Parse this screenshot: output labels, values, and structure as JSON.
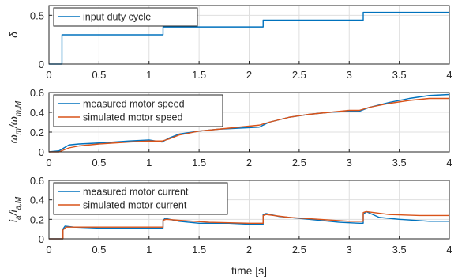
{
  "chart_data": [
    {
      "type": "line",
      "ylabel": "δ",
      "xlabel": "",
      "xlim": [
        0,
        4
      ],
      "ylim": [
        0,
        0.6
      ],
      "xticks": [
        "0",
        "0.5",
        "1",
        "1.5",
        "2",
        "2.5",
        "3",
        "3.5",
        "4"
      ],
      "yticks": [
        "0",
        "0.5"
      ],
      "grid": true,
      "legend_position": "top-left",
      "colors": {
        "blue": "#0072BD"
      },
      "series": [
        {
          "name": "input duty cycle",
          "color": "#0072BD",
          "x": [
            0,
            0.13,
            0.13,
            1.14,
            1.14,
            2.14,
            2.14,
            3.14,
            3.14,
            4.0
          ],
          "y": [
            0,
            0,
            0.3,
            0.3,
            0.38,
            0.38,
            0.45,
            0.45,
            0.53,
            0.53
          ]
        }
      ]
    },
    {
      "type": "line",
      "ylabel": "ωm/ωm,M",
      "xlabel": "",
      "xlim": [
        0,
        4
      ],
      "ylim": [
        0,
        0.6
      ],
      "xticks": [
        "0",
        "0.5",
        "1",
        "1.5",
        "2",
        "2.5",
        "3",
        "3.5",
        "4"
      ],
      "yticks": [
        "0",
        "0.2",
        "0.4",
        "0.6"
      ],
      "grid": true,
      "legend_position": "top-left",
      "series": [
        {
          "name": "measured motor speed",
          "color": "#0072BD",
          "x": [
            0,
            0.1,
            0.15,
            0.2,
            0.3,
            0.5,
            0.8,
            1.0,
            1.13,
            1.2,
            1.3,
            1.5,
            1.7,
            1.9,
            2.1,
            2.2,
            2.4,
            2.6,
            2.8,
            3.0,
            3.1,
            3.2,
            3.4,
            3.6,
            3.8,
            4.0
          ],
          "y": [
            0,
            0.01,
            0.04,
            0.07,
            0.08,
            0.09,
            0.11,
            0.12,
            0.1,
            0.14,
            0.18,
            0.21,
            0.23,
            0.24,
            0.25,
            0.3,
            0.35,
            0.38,
            0.4,
            0.41,
            0.41,
            0.45,
            0.5,
            0.54,
            0.57,
            0.58
          ]
        },
        {
          "name": "simulated motor speed",
          "color": "#D95319",
          "x": [
            0,
            0.1,
            0.15,
            0.2,
            0.3,
            0.5,
            0.8,
            1.0,
            1.13,
            1.2,
            1.3,
            1.5,
            1.7,
            1.9,
            2.1,
            2.2,
            2.4,
            2.6,
            2.8,
            3.0,
            3.1,
            3.2,
            3.4,
            3.6,
            3.8,
            4.0
          ],
          "y": [
            0,
            0.0,
            0.02,
            0.04,
            0.06,
            0.08,
            0.1,
            0.11,
            0.11,
            0.13,
            0.17,
            0.21,
            0.23,
            0.25,
            0.27,
            0.3,
            0.35,
            0.38,
            0.4,
            0.42,
            0.42,
            0.45,
            0.49,
            0.52,
            0.54,
            0.54
          ]
        }
      ]
    },
    {
      "type": "line",
      "ylabel": "ia/ia,M",
      "xlabel": "time [s]",
      "xlim": [
        0,
        4
      ],
      "ylim": [
        0,
        0.6
      ],
      "xticks": [
        "0",
        "0.5",
        "1",
        "1.5",
        "2",
        "2.5",
        "3",
        "3.5",
        "4"
      ],
      "yticks": [
        "0",
        "0.2",
        "0.4",
        "0.6"
      ],
      "grid": true,
      "legend_position": "top-left",
      "series": [
        {
          "name": "measured motor current",
          "color": "#0072BD",
          "x": [
            0,
            0.14,
            0.14,
            0.16,
            0.25,
            0.5,
            0.8,
            1.0,
            1.14,
            1.14,
            1.16,
            1.3,
            1.5,
            1.8,
            2.0,
            2.12,
            2.14,
            2.14,
            2.17,
            2.3,
            2.6,
            2.9,
            3.1,
            3.14,
            3.14,
            3.17,
            3.3,
            3.5,
            3.8,
            4.0
          ],
          "y": [
            0,
            0,
            0.1,
            0.13,
            0.12,
            0.11,
            0.11,
            0.11,
            0.11,
            0.19,
            0.21,
            0.18,
            0.16,
            0.16,
            0.15,
            0.15,
            0.15,
            0.25,
            0.26,
            0.23,
            0.2,
            0.17,
            0.16,
            0.16,
            0.25,
            0.28,
            0.22,
            0.2,
            0.18,
            0.18
          ]
        },
        {
          "name": "simulated motor current",
          "color": "#D95319",
          "x": [
            0,
            0.14,
            0.14,
            0.17,
            0.3,
            0.6,
            1.0,
            1.14,
            1.14,
            1.17,
            1.3,
            1.6,
            2.0,
            2.14,
            2.14,
            2.17,
            2.4,
            2.7,
            3.0,
            3.14,
            3.14,
            3.17,
            3.4,
            3.7,
            4.0
          ],
          "y": [
            0,
            0,
            0.09,
            0.12,
            0.12,
            0.12,
            0.12,
            0.12,
            0.19,
            0.2,
            0.19,
            0.17,
            0.16,
            0.16,
            0.24,
            0.25,
            0.22,
            0.2,
            0.18,
            0.18,
            0.27,
            0.28,
            0.25,
            0.24,
            0.24
          ]
        }
      ]
    }
  ]
}
